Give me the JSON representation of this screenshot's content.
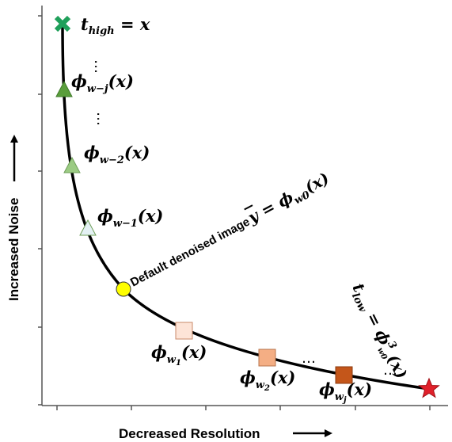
{
  "axes": {
    "x_title": "Decreased Resolution",
    "y_title": "Increased Noise"
  },
  "labels": {
    "t_high": {
      "base": "t",
      "sub": "high",
      "rest": " = x"
    },
    "phi_wmj": {
      "base": "ϕ",
      "sub": "w−j",
      "rest": "(x)"
    },
    "phi_wm2": {
      "base": "ϕ",
      "sub": "w−2",
      "rest": "(x)"
    },
    "phi_wm1": {
      "base": "ϕ",
      "sub": "w−1",
      "rest": "(x)"
    },
    "default": {
      "prefix": "Default denoised image ",
      "ybar": "y",
      "eq": " = ",
      "base": "ϕ",
      "sub": "w0",
      "rest": "(x)"
    },
    "phi_w1": {
      "base": "ϕ",
      "sub": "w",
      "sub2": "1",
      "rest": "(x)"
    },
    "phi_w2": {
      "base": "ϕ",
      "sub": "w",
      "sub2": "2",
      "rest": "(x)"
    },
    "phi_wj": {
      "base": "ϕ",
      "sub": "w",
      "sub2": "j",
      "rest": "(x)"
    },
    "t_low": {
      "base": "t",
      "sub": "low",
      "eq": " = ",
      "phi": "ϕ",
      "sup": "3",
      "sub2": "w0",
      "rest": "(x)"
    }
  },
  "ellipsis": "…",
  "colors": {
    "t_high_marker": "#1fa05a",
    "phi_wmj_marker": "#5a9e3c",
    "phi_wm2_marker": "#9bcb83",
    "phi_wm1_marker": "#e4f1f4",
    "default_marker": "#ffff00",
    "phi_w1_marker": "#fde4d7",
    "phi_w2_marker": "#f4ae84",
    "phi_wj_marker": "#c4561a",
    "t_low_marker": "#e0202a"
  },
  "icons": {
    "t_high_marker": "x-cross-icon",
    "t_low_marker": "star-icon"
  }
}
